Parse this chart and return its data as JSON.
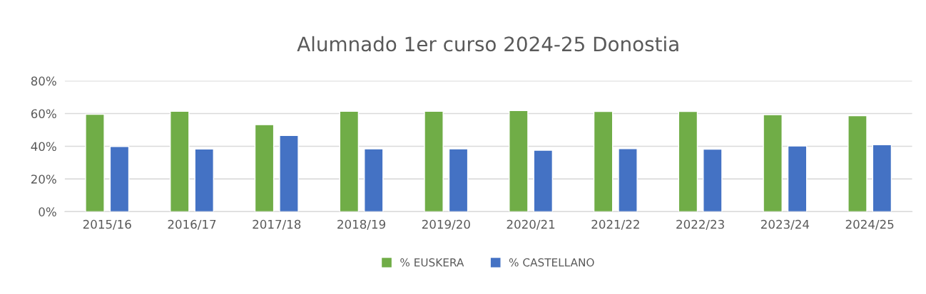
{
  "chart_data": {
    "type": "bar",
    "title": "Alumnado 1er curso 2024-25 Donostia",
    "categories": [
      "2015/16",
      "2016/17",
      "2017/18",
      "2018/19",
      "2019/20",
      "2020/21",
      "2021/22",
      "2022/23",
      "2023/24",
      "2024/25"
    ],
    "series": [
      {
        "name": "% EUSKERA",
        "color": "#70ad47",
        "values": [
          59.6,
          61.4,
          53.2,
          61.4,
          61.4,
          61.8,
          61.3,
          61.3,
          59.3,
          58.7
        ]
      },
      {
        "name": "% CASTELLANO",
        "color": "#4472c4",
        "values": [
          39.9,
          38.3,
          46.6,
          38.4,
          38.4,
          37.6,
          38.5,
          38.2,
          40.2,
          40.9
        ]
      }
    ],
    "ylim": [
      0,
      80
    ],
    "yticks": [
      {
        "value": 0,
        "label": "0%"
      },
      {
        "value": 20,
        "label": "20%"
      },
      {
        "value": 40,
        "label": "40%"
      },
      {
        "value": 60,
        "label": "60%"
      },
      {
        "value": 80,
        "label": "80%"
      }
    ],
    "grid": "y",
    "legend": "bottom"
  }
}
